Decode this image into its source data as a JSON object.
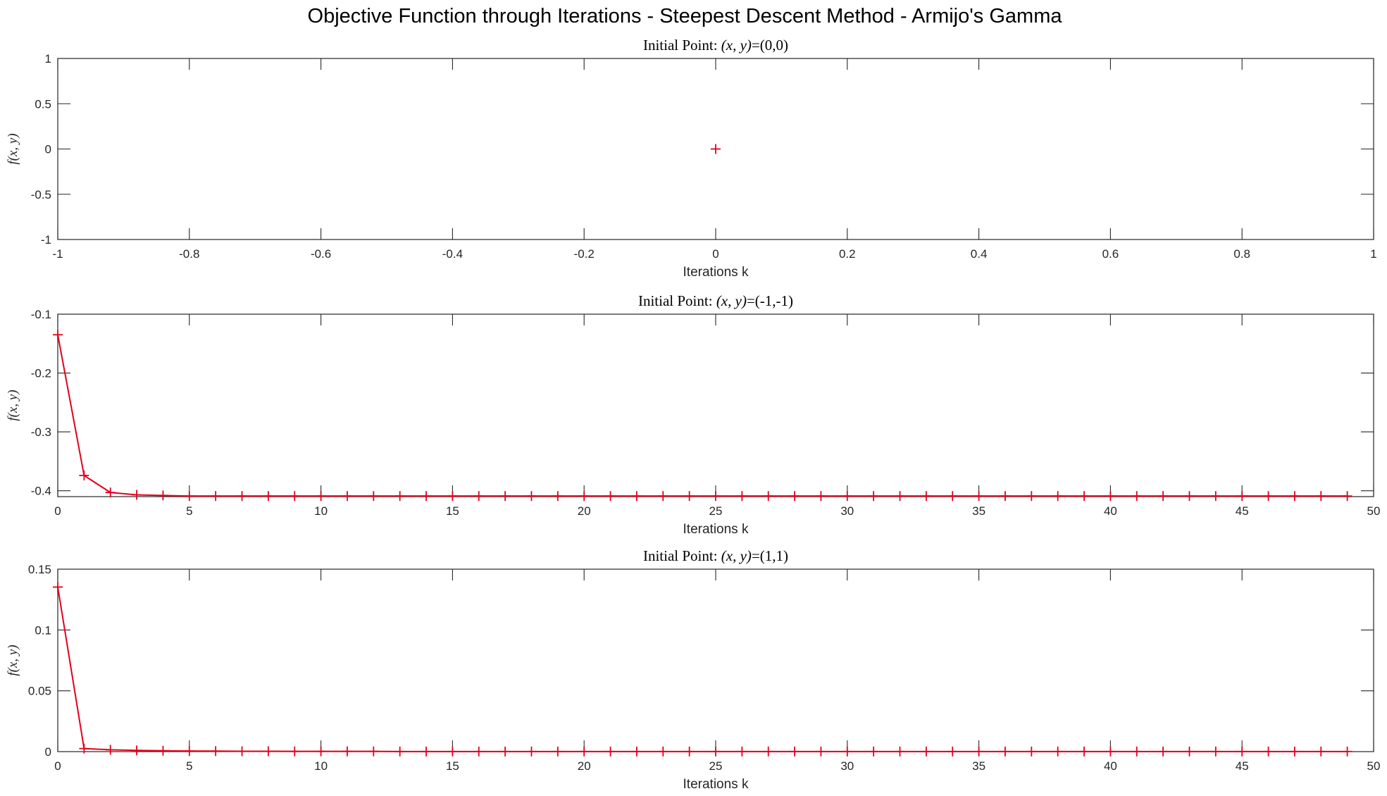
{
  "chart_data": {
    "suptitle": "Objective Function through Iterations - Steepest Descent Method - Armijo's Gamma",
    "color": "#e3001b",
    "subplots": [
      {
        "type": "line",
        "title": "Initial Point: (x, y)=(0,0)",
        "xlabel": "Iterations k",
        "ylabel": "f(x, y)",
        "xlim": [
          -1,
          1
        ],
        "ylim": [
          -1,
          1
        ],
        "xticks": [
          -1,
          -0.8,
          -0.6,
          -0.4,
          -0.2,
          0,
          0.2,
          0.4,
          0.6,
          0.8,
          1
        ],
        "yticks": [
          -1,
          -0.5,
          0,
          0.5,
          1
        ],
        "xtick_labels": [
          "-1",
          "-0.8",
          "-0.6",
          "-0.4",
          "-0.2",
          "0",
          "0.2",
          "0.4",
          "0.6",
          "0.8",
          "1"
        ],
        "ytick_labels": [
          "-1",
          "-0.5",
          "0",
          "0.5",
          "1"
        ],
        "grid": false,
        "marker": "+",
        "series": [
          {
            "x": [
              0
            ],
            "y": [
              0
            ]
          }
        ]
      },
      {
        "type": "line",
        "title": "Initial Point: (x, y)=(-1,-1)",
        "xlabel": "Iterations k",
        "ylabel": "f(x, y)",
        "xlim": [
          0,
          50
        ],
        "ylim": [
          -0.41,
          -0.1
        ],
        "xticks": [
          0,
          5,
          10,
          15,
          20,
          25,
          30,
          35,
          40,
          45,
          50
        ],
        "yticks": [
          -0.4,
          -0.3,
          -0.2,
          -0.1
        ],
        "xtick_labels": [
          "0",
          "5",
          "10",
          "15",
          "20",
          "25",
          "30",
          "35",
          "40",
          "45",
          "50"
        ],
        "ytick_labels": [
          "-0.4",
          "-0.3",
          "-0.2",
          "-0.1"
        ],
        "grid": false,
        "marker": "+",
        "series": [
          {
            "x": [
              0,
              1,
              2,
              3,
              4,
              5,
              6,
              7,
              8,
              9,
              10,
              11,
              12,
              13,
              14,
              15,
              16,
              17,
              18,
              19,
              20,
              21,
              22,
              23,
              24,
              25,
              26,
              27,
              28,
              29,
              30,
              31,
              32,
              33,
              34,
              35,
              36,
              37,
              38,
              39,
              40,
              41,
              42,
              43,
              44,
              45,
              46,
              47,
              48,
              49
            ],
            "y": [
              -0.135,
              -0.374,
              -0.403,
              -0.407,
              -0.408,
              -0.409,
              -0.409,
              -0.409,
              -0.409,
              -0.409,
              -0.409,
              -0.409,
              -0.409,
              -0.409,
              -0.409,
              -0.409,
              -0.409,
              -0.409,
              -0.409,
              -0.409,
              -0.409,
              -0.409,
              -0.409,
              -0.409,
              -0.409,
              -0.409,
              -0.409,
              -0.409,
              -0.409,
              -0.409,
              -0.409,
              -0.409,
              -0.409,
              -0.409,
              -0.409,
              -0.409,
              -0.409,
              -0.409,
              -0.409,
              -0.409,
              -0.409,
              -0.409,
              -0.409,
              -0.409,
              -0.409,
              -0.409,
              -0.409,
              -0.409,
              -0.409,
              -0.409
            ]
          }
        ]
      },
      {
        "type": "line",
        "title": "Initial Point: (x, y)=(1,1)",
        "xlabel": "Iterations k",
        "ylabel": "f(x, y)",
        "xlim": [
          0,
          50
        ],
        "ylim": [
          0,
          0.15
        ],
        "xticks": [
          0,
          5,
          10,
          15,
          20,
          25,
          30,
          35,
          40,
          45,
          50
        ],
        "yticks": [
          0,
          0.05,
          0.1,
          0.15
        ],
        "xtick_labels": [
          "0",
          "5",
          "10",
          "15",
          "20",
          "25",
          "30",
          "35",
          "40",
          "45",
          "50"
        ],
        "ytick_labels": [
          "0",
          "0.05",
          "0.1",
          "0.15"
        ],
        "grid": false,
        "marker": "+",
        "series": [
          {
            "x": [
              0,
              1,
              2,
              3,
              4,
              5,
              6,
              7,
              8,
              9,
              10,
              11,
              12,
              13,
              14,
              15,
              16,
              17,
              18,
              19,
              20,
              21,
              22,
              23,
              24,
              25,
              26,
              27,
              28,
              29,
              30,
              31,
              32,
              33,
              34,
              35,
              36,
              37,
              38,
              39,
              40,
              41,
              42,
              43,
              44,
              45,
              46,
              47,
              48,
              49
            ],
            "y": [
              0.1353,
              0.0025,
              0.0015,
              0.001,
              0.0007,
              0.0005,
              0.0004,
              0.0003,
              0.0003,
              0.0002,
              0.0002,
              0.0002,
              0.0002,
              0.0001,
              0.0001,
              0.0001,
              0.0001,
              0.0001,
              0.0001,
              0.0001,
              0.0001,
              0.0001,
              0.0001,
              0.0001,
              0.0001,
              0.0001,
              0.0001,
              0.0001,
              0.0001,
              0.0001,
              0.0001,
              0.0001,
              0.0001,
              0.0001,
              0.0001,
              0.0001,
              0.0001,
              0.0001,
              0.0001,
              0.0001,
              0.0001,
              0.0001,
              0.0001,
              0.0001,
              0.0001,
              0.0001,
              0.0001,
              0.0001,
              0.0001,
              0.0001
            ]
          }
        ]
      }
    ]
  }
}
